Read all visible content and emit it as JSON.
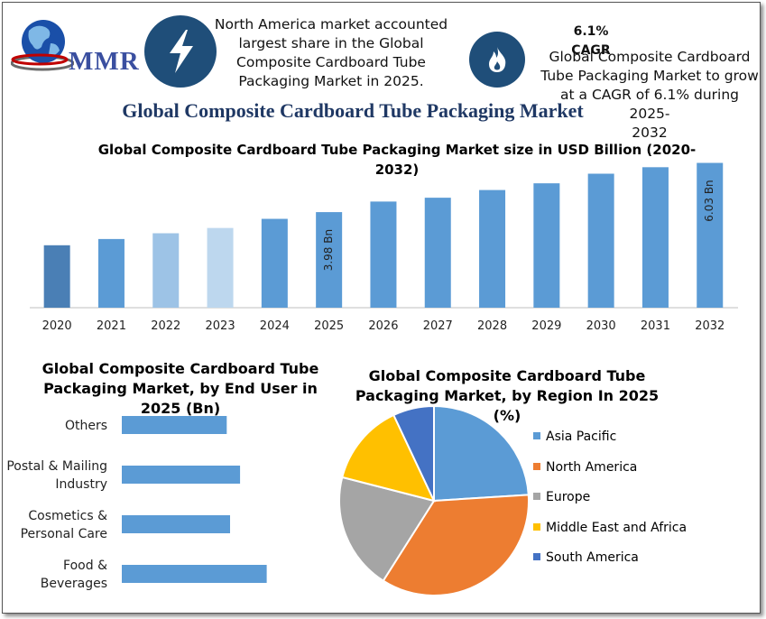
{
  "header": {
    "logo_text": "MMR",
    "info1": {
      "icon": "lightning-icon",
      "lines": [
        "North America market accounted",
        "largest share in the Global",
        "Composite Cardboard Tube",
        "Packaging Market in 2025."
      ]
    },
    "info2": {
      "icon": "flame-icon",
      "title": "6.1% CAGR",
      "lines": [
        "Global Composite Cardboard",
        "Tube Packaging Market to grow",
        "at a CAGR of 6.1% during 2025-",
        "2032"
      ]
    },
    "icon_color": "#1f4e79"
  },
  "main_title": "Global Composite Cardboard Tube Packaging Market",
  "chart_data": [
    {
      "type": "bar",
      "title": "Global Composite Cardboard Tube Packaging Market size in USD Billion (2020-2032)",
      "title_lines": [
        "Global Composite Cardboard Tube Packaging Market size in USD Billion (2020-",
        "2032)"
      ],
      "categories": [
        "2020",
        "2021",
        "2022",
        "2023",
        "2024",
        "2025",
        "2026",
        "2027",
        "2028",
        "2029",
        "2030",
        "2031",
        "2032"
      ],
      "values": [
        2.6,
        2.86,
        3.1,
        3.32,
        3.7,
        3.98,
        4.42,
        4.58,
        4.9,
        5.18,
        5.58,
        5.85,
        6.03
      ],
      "colors": [
        "#4a7fb5",
        "#5b9bd5",
        "#9dc3e6",
        "#bdd7ee",
        "#5b9bd5",
        "#5b9bd5",
        "#5b9bd5",
        "#5b9bd5",
        "#5b9bd5",
        "#5b9bd5",
        "#5b9bd5",
        "#5b9bd5",
        "#5b9bd5"
      ],
      "data_labels": {
        "2025": "3.98 Bn",
        "2032": "6.03 Bn"
      },
      "ylim": [
        0,
        6.2
      ],
      "grid": false,
      "legend": "none"
    },
    {
      "type": "bar",
      "orientation": "horizontal",
      "title": "Global Composite Cardboard Tube Packaging Market, by End User in 2025 (Bn)",
      "title_lines": [
        "Global Composite Cardboard Tube",
        "Packaging Market, by End User in",
        "2025 (Bn)"
      ],
      "categories": [
        [
          "Others"
        ],
        [
          "Postal & Mailing",
          "Industry"
        ],
        [
          "Cosmetics &",
          "Personal Care"
        ],
        [
          "Food &",
          "Beverages"
        ]
      ],
      "values": [
        0.63,
        0.71,
        0.65,
        0.87
      ],
      "color": "#5b9bd5",
      "xlim": [
        0,
        1.3
      ],
      "grid": false,
      "legend": "none"
    },
    {
      "type": "pie",
      "title": "Global Composite Cardboard Tube Packaging Market, by Region In 2025 (%)",
      "title_lines": [
        "Global Composite Cardboard Tube",
        "Packaging Market, by Region In 2025",
        "(%)"
      ],
      "labels": [
        "Asia Pacific",
        "North America",
        "Europe",
        "Middle East and Africa",
        "South America"
      ],
      "values": [
        24,
        35,
        20,
        14,
        7
      ],
      "colors": [
        "#5b9bd5",
        "#ed7d31",
        "#a5a5a5",
        "#ffc000",
        "#4472c4"
      ],
      "legend": "right"
    }
  ]
}
